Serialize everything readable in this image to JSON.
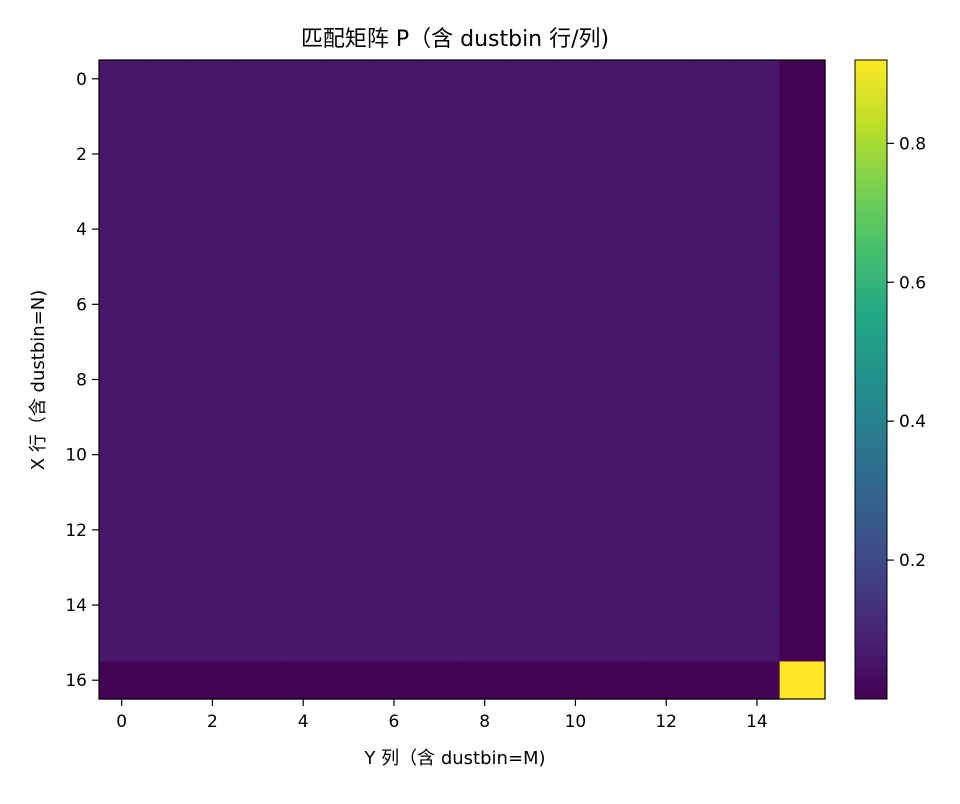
{
  "chart_data": {
    "type": "heatmap",
    "title": "匹配矩阵 P（含 dustbin 行/列)",
    "xlabel": "Y 列（含 dustbin=M)",
    "ylabel": "X 行（含 dustbin=N)",
    "rows": 17,
    "cols": 16,
    "x_ticks": [
      0,
      2,
      4,
      6,
      8,
      10,
      12,
      14
    ],
    "y_ticks": [
      0,
      2,
      4,
      6,
      8,
      10,
      12,
      14,
      16
    ],
    "colormap": "viridis",
    "colorbar": {
      "min": 0.0,
      "max": 0.92,
      "ticks": [
        0.2,
        0.4,
        0.6,
        0.8
      ],
      "tick_labels": [
        "0.2",
        "0.4",
        "0.6",
        "0.8"
      ]
    },
    "values_description_free": true,
    "values": {
      "interior": 0.059,
      "dustbin_row": 0.003,
      "dustbin_col": 0.003,
      "corner": 0.92
    }
  }
}
